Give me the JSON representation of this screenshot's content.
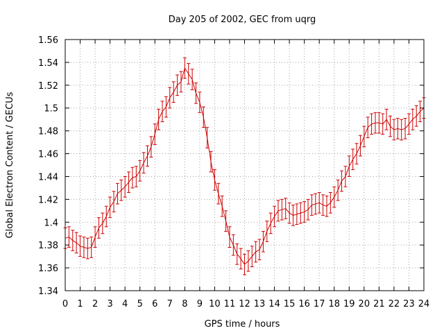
{
  "chart_data": {
    "type": "line",
    "title": "Day 205 of 2002, GEC from uqrg",
    "xlabel": "GPS time / hours",
    "ylabel": "Global Electron Content / GECUs",
    "xlim": [
      0,
      24
    ],
    "ylim": [
      1.34,
      1.56
    ],
    "xticks": [
      "0",
      "1",
      "2",
      "3",
      "4",
      "5",
      "6",
      "7",
      "8",
      "9",
      "10",
      "11",
      "12",
      "13",
      "14",
      "15",
      "16",
      "17",
      "18",
      "19",
      "20",
      "21",
      "22",
      "23",
      "24"
    ],
    "yticks": [
      "1.34",
      "1.36",
      "1.38",
      "1.4",
      "1.42",
      "1.44",
      "1.46",
      "1.48",
      "1.5",
      "1.52",
      "1.54",
      "1.56"
    ],
    "grid": true,
    "error_bar": 0.009,
    "colors": {
      "series": "#cc0000",
      "grid": "#a0a0a0"
    },
    "series": [
      {
        "x": [
          0,
          0.25,
          0.5,
          0.75,
          1,
          1.25,
          1.5,
          1.75,
          2,
          2.25,
          2.5,
          2.75,
          3,
          3.25,
          3.5,
          3.75,
          4,
          4.25,
          4.5,
          4.75,
          5,
          5.25,
          5.5,
          5.75,
          6,
          6.25,
          6.5,
          6.75,
          7,
          7.25,
          7.5,
          7.75,
          8,
          8.25,
          8.5,
          8.75,
          9,
          9.25,
          9.5,
          9.75,
          10,
          10.25,
          10.5,
          10.75,
          11,
          11.25,
          11.5,
          11.75,
          12,
          12.25,
          12.5,
          12.75,
          13,
          13.25,
          13.5,
          13.75,
          14,
          14.25,
          14.5,
          14.75,
          15,
          15.25,
          15.5,
          15.75,
          16,
          16.25,
          16.5,
          16.75,
          17,
          17.25,
          17.5,
          17.75,
          18,
          18.25,
          18.5,
          18.75,
          19,
          19.25,
          19.5,
          19.75,
          20,
          20.25,
          20.5,
          20.75,
          21,
          21.25,
          21.5,
          21.75,
          22,
          22.25,
          22.5,
          22.75,
          23,
          23.25,
          23.5,
          23.75,
          24
        ],
        "y": [
          1.386,
          1.387,
          1.384,
          1.382,
          1.379,
          1.378,
          1.377,
          1.378,
          1.387,
          1.395,
          1.399,
          1.405,
          1.413,
          1.418,
          1.425,
          1.428,
          1.431,
          1.435,
          1.439,
          1.44,
          1.445,
          1.452,
          1.458,
          1.466,
          1.477,
          1.49,
          1.497,
          1.501,
          1.509,
          1.514,
          1.52,
          1.523,
          1.535,
          1.53,
          1.525,
          1.513,
          1.505,
          1.492,
          1.474,
          1.453,
          1.437,
          1.425,
          1.414,
          1.401,
          1.387,
          1.38,
          1.372,
          1.368,
          1.363,
          1.366,
          1.37,
          1.374,
          1.376,
          1.383,
          1.392,
          1.399,
          1.405,
          1.41,
          1.411,
          1.412,
          1.408,
          1.406,
          1.407,
          1.408,
          1.409,
          1.411,
          1.415,
          1.416,
          1.417,
          1.415,
          1.414,
          1.417,
          1.422,
          1.428,
          1.436,
          1.44,
          1.449,
          1.455,
          1.46,
          1.467,
          1.475,
          1.483,
          1.486,
          1.487,
          1.487,
          1.486,
          1.49,
          1.484,
          1.481,
          1.482,
          1.481,
          1.482,
          1.486,
          1.49,
          1.493,
          1.497,
          1.5
        ]
      }
    ]
  }
}
